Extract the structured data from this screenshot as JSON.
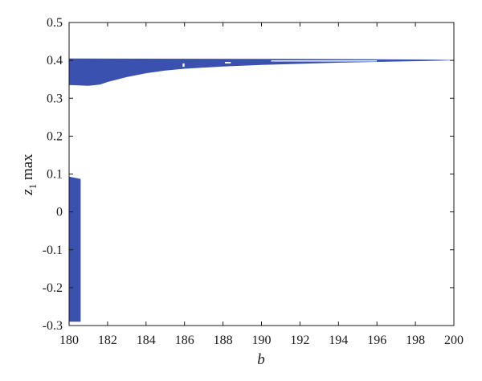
{
  "chart_data": {
    "type": "scatter",
    "title": "",
    "xlabel": "b",
    "ylabel_var": "z",
    "ylabel_sub": "1",
    "ylabel_rest": " max",
    "xlim": [
      180,
      200
    ],
    "ylim": [
      -0.3,
      0.5
    ],
    "grid": false,
    "legend": "none",
    "series_color": "#3a51b0",
    "x_ticks": [
      180,
      182,
      184,
      186,
      188,
      190,
      192,
      194,
      196,
      198,
      200
    ],
    "x_tick_labels": [
      "180",
      "182",
      "184",
      "186",
      "188",
      "190",
      "192",
      "194",
      "196",
      "198",
      "200"
    ],
    "y_ticks": [
      0.5,
      0.4,
      0.3,
      0.2,
      0.1,
      0,
      -0.1,
      -0.2,
      -0.3
    ],
    "y_tick_labels": [
      "0.5",
      "0.4",
      "0.3",
      "0.2",
      "0.1",
      "0",
      "-0.1",
      "-0.2",
      "-0.3"
    ],
    "upper_band": {
      "top": [
        [
          180.0,
          0.405
        ],
        [
          190.0,
          0.404
        ],
        [
          196.0,
          0.403
        ],
        [
          199.0,
          0.402
        ],
        [
          200.0,
          0.401
        ]
      ],
      "bottom": [
        [
          180.0,
          0.335
        ],
        [
          181.0,
          0.333
        ],
        [
          181.6,
          0.336
        ],
        [
          182.0,
          0.343
        ],
        [
          183.0,
          0.356
        ],
        [
          184.0,
          0.366
        ],
        [
          185.0,
          0.373
        ],
        [
          186.0,
          0.378
        ],
        [
          188.0,
          0.384
        ],
        [
          190.0,
          0.388
        ],
        [
          192.0,
          0.391
        ],
        [
          194.0,
          0.394
        ],
        [
          196.0,
          0.396
        ],
        [
          198.0,
          0.398
        ],
        [
          200.0,
          0.4
        ]
      ]
    },
    "lower_band": {
      "x_range": [
        180.0,
        180.6
      ],
      "top": [
        [
          180.0,
          0.093
        ],
        [
          180.6,
          0.087
        ]
      ],
      "bottom": [
        [
          180.0,
          -0.29
        ],
        [
          180.6,
          -0.29
        ]
      ]
    },
    "gaps": [
      {
        "x_range": [
          185.9,
          186.0
        ],
        "y_range": [
          0.383,
          0.392
        ]
      },
      {
        "x_range": [
          188.1,
          188.4
        ],
        "y_range": [
          0.392,
          0.396
        ]
      },
      {
        "x_range": [
          190.5,
          196.0
        ],
        "y_range": [
          0.397,
          0.4
        ]
      }
    ]
  }
}
